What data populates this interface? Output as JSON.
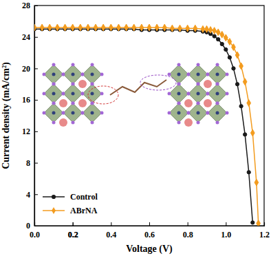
{
  "chart_data": {
    "type": "line",
    "x_label": "Voltage (V)",
    "y_label": "Current density (mA/cm²)",
    "xlim": [
      0,
      1.2
    ],
    "xticks": [
      {
        "value": 0,
        "label": "0.0"
      },
      0.2,
      0.4,
      0.6,
      0.8,
      {
        "value": 1,
        "label": "1.0"
      },
      0.2,
      1.2
    ],
    "ylim": [
      0,
      28
    ],
    "yticks": [
      0,
      4,
      8,
      12,
      16,
      20,
      24,
      28
    ],
    "legend": "lower left",
    "grid": false,
    "series": [
      {
        "name": "Control",
        "color": "#1a1a1a",
        "marker": "circle",
        "line_style": "solid",
        "x": [
          0,
          0.04,
          0.08,
          0.12,
          0.16,
          0.2,
          0.24,
          0.28,
          0.32,
          0.36,
          0.4,
          0.44,
          0.48,
          0.52,
          0.56,
          0.6,
          0.64,
          0.68,
          0.72,
          0.76,
          0.8,
          0.84,
          0.88,
          0.9,
          0.92,
          0.94,
          0.96,
          0.98,
          1.0,
          1.02,
          1.04,
          1.06,
          1.08,
          1.1,
          1.12,
          1.14
        ],
        "values": [
          25.0,
          25.0,
          25.0,
          25.0,
          25.0,
          25.0,
          25.0,
          25.0,
          25.0,
          25.0,
          25.0,
          25.0,
          25.0,
          25.0,
          24.9,
          24.9,
          24.9,
          24.9,
          24.9,
          24.9,
          24.8,
          24.8,
          24.7,
          24.6,
          24.4,
          24.1,
          23.7,
          23.1,
          22.4,
          21.4,
          20.0,
          18.0,
          15.2,
          11.6,
          6.8,
          0.4
        ]
      },
      {
        "name": "ABrNA",
        "color": "#f39c1f",
        "marker": "diamond",
        "line_style": "solid",
        "x": [
          0,
          0.04,
          0.08,
          0.12,
          0.16,
          0.2,
          0.24,
          0.28,
          0.32,
          0.36,
          0.4,
          0.44,
          0.48,
          0.52,
          0.56,
          0.6,
          0.64,
          0.68,
          0.72,
          0.76,
          0.8,
          0.84,
          0.88,
          0.9,
          0.92,
          0.94,
          0.96,
          0.98,
          1.0,
          1.02,
          1.04,
          1.06,
          1.08,
          1.1,
          1.12,
          1.14,
          1.16,
          1.17
        ],
        "values": [
          25.2,
          25.2,
          25.2,
          25.2,
          25.2,
          25.2,
          25.2,
          25.2,
          25.2,
          25.2,
          25.2,
          25.2,
          25.2,
          25.2,
          25.2,
          25.2,
          25.2,
          25.2,
          25.1,
          25.1,
          25.1,
          25.1,
          25.0,
          25.0,
          24.9,
          24.8,
          24.6,
          24.3,
          23.9,
          23.4,
          22.7,
          21.7,
          20.3,
          18.3,
          15.6,
          11.8,
          5.5,
          0.3
        ]
      }
    ]
  }
}
